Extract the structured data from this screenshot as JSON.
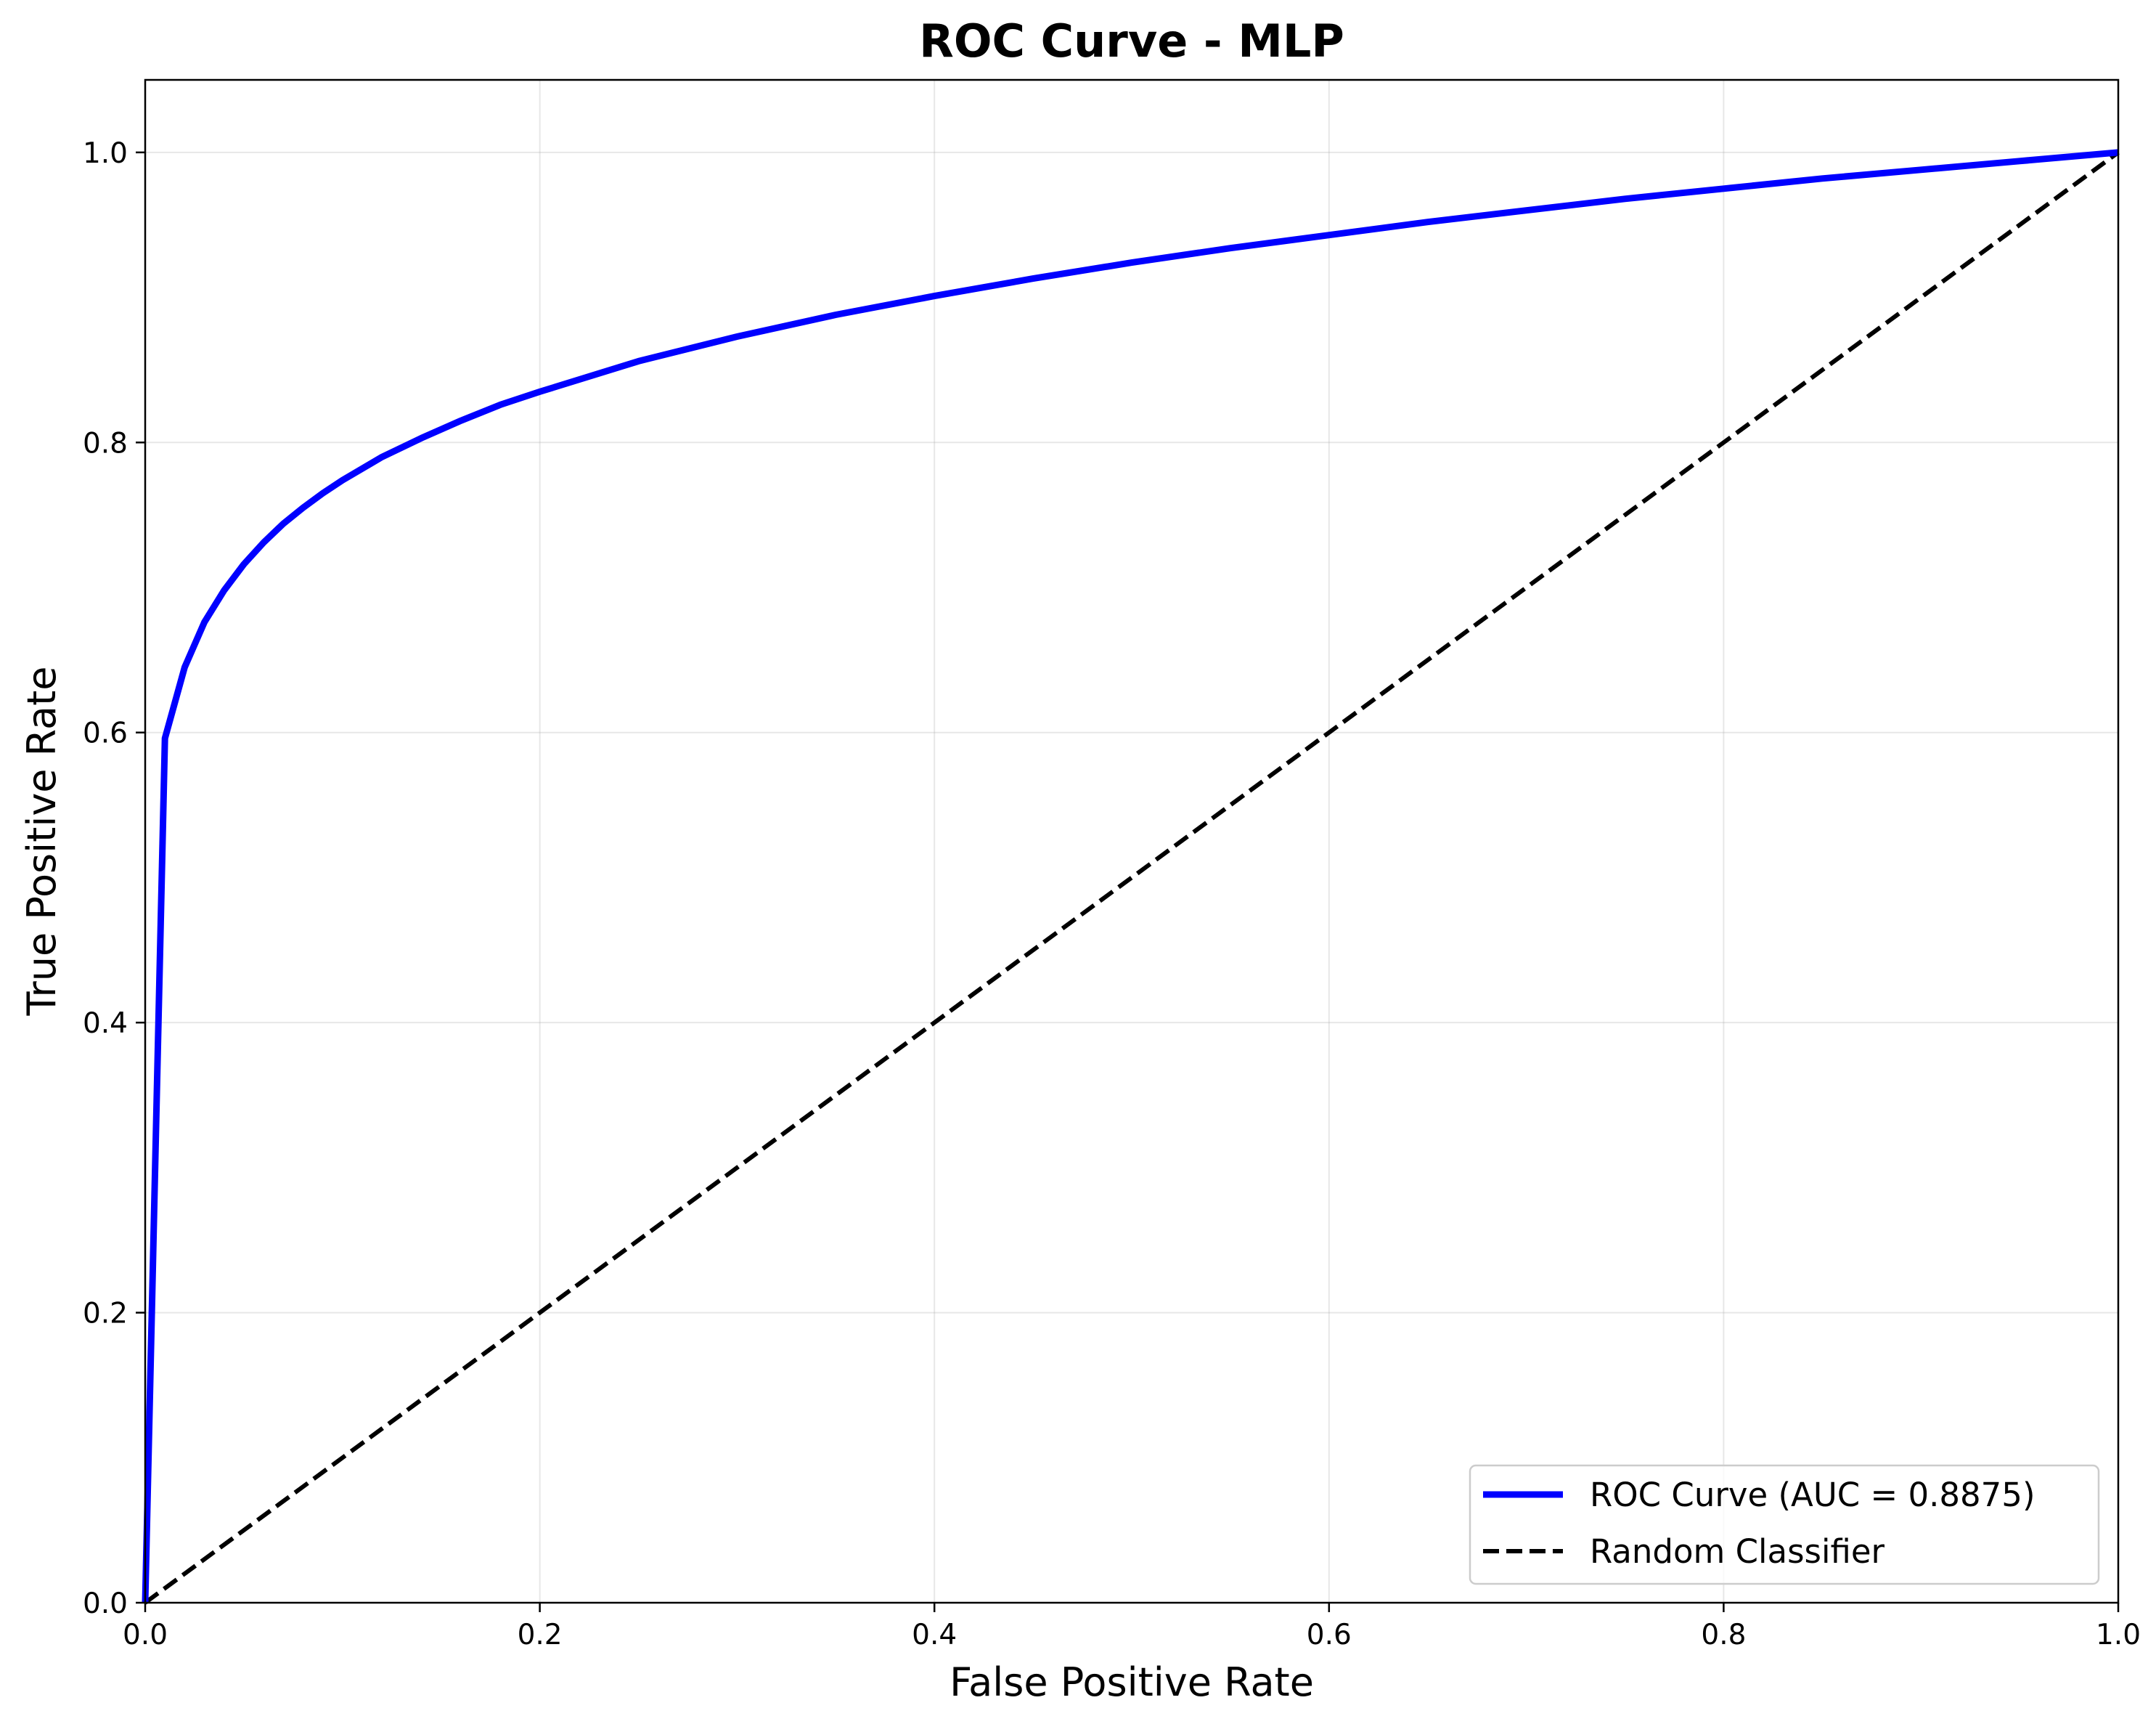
{
  "chart_data": {
    "type": "line",
    "title": "ROC Curve - MLP",
    "xlabel": "False Positive Rate",
    "ylabel": "True Positive Rate",
    "xlim": [
      0.0,
      1.0
    ],
    "ylim": [
      0.0,
      1.05
    ],
    "xticks": [
      0.0,
      0.2,
      0.4,
      0.6,
      0.8,
      1.0
    ],
    "yticks": [
      0.0,
      0.2,
      0.4,
      0.6,
      0.8,
      1.0
    ],
    "xtick_labels": [
      "0.0",
      "0.2",
      "0.4",
      "0.6",
      "0.8",
      "1.0"
    ],
    "ytick_labels": [
      "0.0",
      "0.2",
      "0.4",
      "0.6",
      "0.8",
      "1.0"
    ],
    "grid": true,
    "legend_position": "lower-right",
    "series": [
      {
        "name": "ROC Curve (AUC = 0.8875)",
        "color": "#0000ff",
        "style": "solid",
        "x": [
          0.0,
          0.01,
          0.02,
          0.03,
          0.04,
          0.05,
          0.06,
          0.07,
          0.08,
          0.09,
          0.1,
          0.12,
          0.14,
          0.16,
          0.18,
          0.2,
          0.25,
          0.3,
          0.35,
          0.4,
          0.45,
          0.5,
          0.55,
          0.6,
          0.65,
          0.7,
          0.75,
          0.8,
          0.85,
          0.9,
          0.95,
          1.0
        ],
        "y": [
          0.0,
          0.596,
          0.645,
          0.676,
          0.698,
          0.716,
          0.731,
          0.744,
          0.755,
          0.765,
          0.774,
          0.79,
          0.803,
          0.815,
          0.826,
          0.835,
          0.856,
          0.873,
          0.888,
          0.901,
          0.913,
          0.924,
          0.934,
          0.943,
          0.952,
          0.96,
          0.968,
          0.975,
          0.982,
          0.988,
          0.994,
          1.0
        ]
      },
      {
        "name": "Random Classifier",
        "color": "#000000",
        "style": "dashed",
        "x": [
          0.0,
          1.0
        ],
        "y": [
          0.0,
          1.0
        ]
      }
    ]
  }
}
